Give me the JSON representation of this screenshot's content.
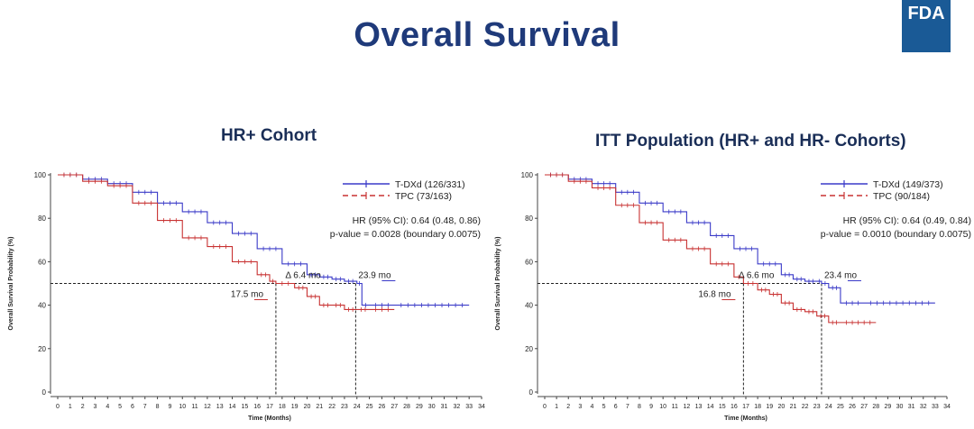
{
  "title": "Overall Survival",
  "logo": "FDA",
  "colors": {
    "tdxd": "#3a3ac8",
    "tpc": "#c83232",
    "title": "#1f3a7a",
    "logo": "#1a5a96"
  },
  "chart_data": [
    {
      "type": "line",
      "title": "HR+ Cohort",
      "xlabel": "Time (Months)",
      "ylabel": "Overall Survival Probability (%)",
      "xlim": [
        0,
        34
      ],
      "ylim": [
        0,
        100
      ],
      "x_ticks": [
        0,
        1,
        2,
        3,
        4,
        5,
        6,
        7,
        8,
        9,
        10,
        11,
        12,
        13,
        14,
        15,
        16,
        17,
        18,
        19,
        20,
        21,
        22,
        23,
        24,
        25,
        26,
        27,
        28,
        29,
        30,
        31,
        32,
        33,
        34
      ],
      "y_ticks": [
        0,
        20,
        40,
        60,
        80,
        100
      ],
      "legend": [
        "T-DXd (126/331)",
        "TPC (73/163)"
      ],
      "hr_text": "HR (95% CI): 0.64 (0.48, 0.86)",
      "p_text": "p-value = 0.0028 (boundary 0.0075)",
      "series": [
        {
          "name": "T-DXd (126/331)",
          "x": [
            0,
            2,
            4,
            6,
            8,
            10,
            12,
            14,
            16,
            18,
            20,
            21,
            22,
            23,
            24,
            24.4,
            25,
            27,
            33
          ],
          "y": [
            100,
            98,
            96,
            92,
            87,
            83,
            78,
            73,
            66,
            59,
            54,
            53,
            52,
            51,
            50,
            40,
            40,
            40,
            40
          ]
        },
        {
          "name": "TPC (73/163)",
          "x": [
            0,
            2,
            4,
            6,
            8,
            10,
            12,
            14,
            16,
            17,
            17.5,
            19,
            20,
            21,
            22,
            23,
            24,
            25,
            27
          ],
          "y": [
            100,
            97,
            95,
            87,
            79,
            71,
            67,
            60,
            54,
            51,
            50,
            48,
            44,
            40,
            40,
            38,
            38,
            38,
            38
          ]
        }
      ],
      "medians": [
        {
          "label": "17.5 mo",
          "x": 17.5
        },
        {
          "label": "23.9 mo",
          "x": 23.9
        }
      ],
      "delta": "Δ 6.4 mo"
    },
    {
      "type": "line",
      "title": "ITT Population (HR+ and HR- Cohorts)",
      "xlabel": "Time (Months)",
      "ylabel": "Overall Survival Probability (%)",
      "xlim": [
        0,
        34
      ],
      "ylim": [
        0,
        100
      ],
      "x_ticks": [
        0,
        1,
        2,
        3,
        4,
        5,
        6,
        7,
        8,
        9,
        10,
        11,
        12,
        13,
        14,
        15,
        16,
        17,
        18,
        19,
        20,
        21,
        22,
        23,
        24,
        25,
        26,
        27,
        28,
        29,
        30,
        31,
        32,
        33,
        34
      ],
      "y_ticks": [
        0,
        20,
        40,
        60,
        80,
        100
      ],
      "legend": [
        "T-DXd (149/373)",
        "TPC (90/184)"
      ],
      "hr_text": "HR (95% CI): 0.64 (0.49, 0.84)",
      "p_text": "p-value = 0.0010 (boundary 0.0075)",
      "series": [
        {
          "name": "T-DXd (149/373)",
          "x": [
            0,
            2,
            4,
            6,
            8,
            10,
            12,
            14,
            16,
            18,
            20,
            21,
            22,
            23,
            23.4,
            24,
            25,
            27,
            33
          ],
          "y": [
            100,
            98,
            96,
            92,
            87,
            83,
            78,
            72,
            66,
            59,
            54,
            52,
            51,
            51,
            50,
            48,
            41,
            41,
            41
          ]
        },
        {
          "name": "TPC (90/184)",
          "x": [
            0,
            2,
            4,
            6,
            8,
            10,
            12,
            14,
            16,
            16.8,
            18,
            19,
            20,
            21,
            22,
            23,
            24,
            25,
            28
          ],
          "y": [
            100,
            97,
            94,
            86,
            78,
            70,
            66,
            59,
            53,
            50,
            47,
            45,
            41,
            38,
            37,
            35,
            32,
            32,
            32
          ]
        }
      ],
      "medians": [
        {
          "label": "16.8 mo",
          "x": 16.8
        },
        {
          "label": "23.4 mo",
          "x": 23.4
        }
      ],
      "delta": "Δ 6.6 mo"
    }
  ]
}
